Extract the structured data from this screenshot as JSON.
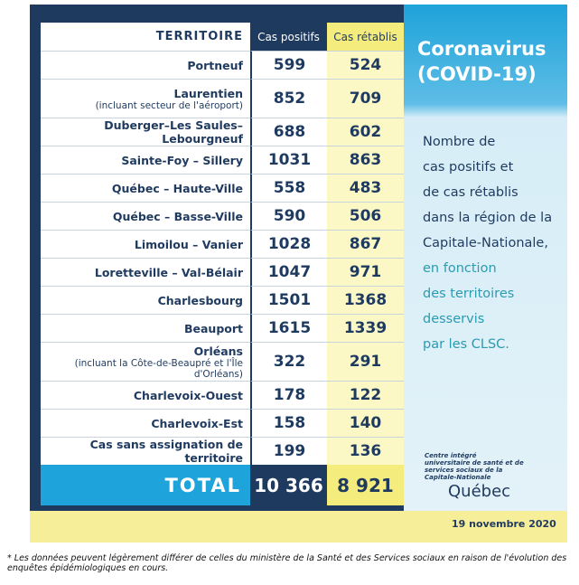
{
  "header": {
    "territory": "TERRITOIRE",
    "positive": "Cas positifs",
    "recovered": "Cas rétablis"
  },
  "table": {
    "rows": [
      {
        "name": "Portneuf",
        "positive": 599,
        "recovered": 524
      },
      {
        "name": "Laurentien",
        "note": "(incluant secteur de l'aéroport)",
        "positive": 852,
        "recovered": 709
      },
      {
        "name": "Duberger–Les Saules–Lebourgneuf",
        "positive": 688,
        "recovered": 602
      },
      {
        "name": "Sainte-Foy – Sillery",
        "positive": 1031,
        "recovered": 863
      },
      {
        "name": "Québec – Haute-Ville",
        "positive": 558,
        "recovered": 483
      },
      {
        "name": "Québec – Basse-Ville",
        "positive": 590,
        "recovered": 506
      },
      {
        "name": "Limoilou – Vanier",
        "positive": 1028,
        "recovered": 867
      },
      {
        "name": "Loretteville – Val-Bélair",
        "positive": 1047,
        "recovered": 971
      },
      {
        "name": "Charlesbourg",
        "positive": 1501,
        "recovered": 1368
      },
      {
        "name": "Beauport",
        "positive": 1615,
        "recovered": 1339
      },
      {
        "name": "Orléans",
        "note": "(incluant la Côte-de-Beaupré et l'Île d'Orléans)",
        "positive": 322,
        "recovered": 291
      },
      {
        "name": "Charlevoix-Ouest",
        "positive": 178,
        "recovered": 122
      },
      {
        "name": "Charlevoix-Est",
        "positive": 158,
        "recovered": 140
      },
      {
        "name": "Cas sans assignation de territoire",
        "positive": 199,
        "recovered": 136
      }
    ],
    "total": {
      "label": "TOTAL",
      "positive": "10 366",
      "recovered": "8 921"
    }
  },
  "panel": {
    "title": "Coronavirus (COVID-19)",
    "lines_main": [
      "Nombre de",
      "cas positifs et",
      "de cas rétablis",
      "dans la région de la",
      "Capitale-Nationale,"
    ],
    "lines_accent": [
      "en fonction",
      "des territoires",
      "desservis",
      "par les CLSC."
    ],
    "org": "Centre intégré universitaire de santé et de services sociaux de la Capitale-Nationale",
    "brand": "Québec"
  },
  "date": "19 novembre 2020",
  "footnote": "* Les données peuvent légèrement différer de celles du ministère de la Santé et des Services sociaux en raison de l'évolution des enquêtes épidémiologiques en cours."
}
